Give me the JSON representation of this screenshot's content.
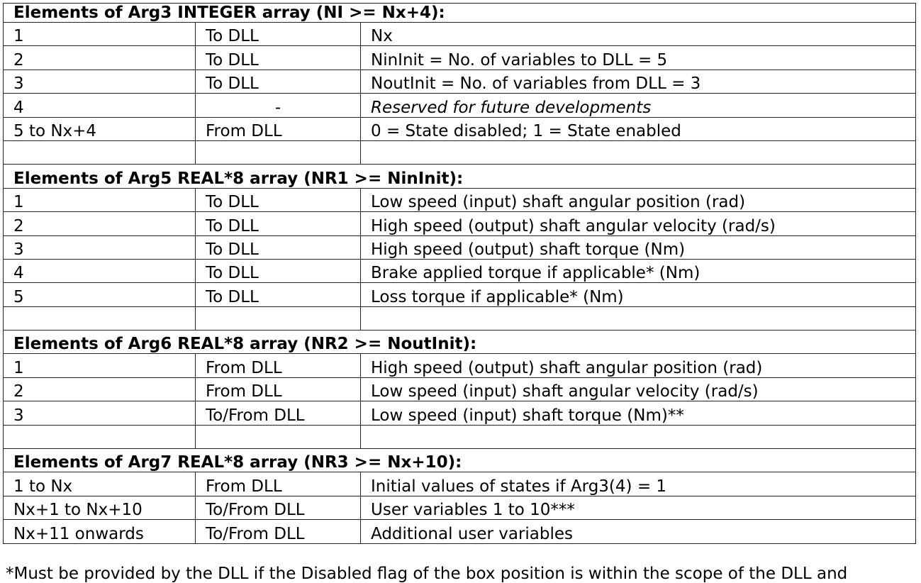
{
  "sections": [
    {
      "heading": "Elements of Arg3 INTEGER array (NI >= Nx+4):",
      "rows": [
        [
          "1",
          "To DLL",
          "Nx"
        ],
        [
          "2",
          "To DLL",
          "NinInit = No. of variables to DLL = 5"
        ],
        [
          "3",
          "To DLL",
          "NoutInit = No. of variables from DLL = 3"
        ],
        [
          "4",
          "-",
          "Reserved for future developments"
        ],
        [
          "5 to Nx+4",
          "From DLL",
          "0 = State disabled; 1 = State enabled"
        ]
      ]
    },
    {
      "heading": "Elements of Arg5 REAL*8 array (NR1 >= NinInit):",
      "rows": [
        [
          "1",
          "To DLL",
          "Low speed (input) shaft angular position (rad)"
        ],
        [
          "2",
          "To DLL",
          "High speed (output) shaft angular velocity (rad/s)"
        ],
        [
          "3",
          "To DLL",
          "High speed (output) shaft torque (Nm)"
        ],
        [
          "4",
          "To DLL",
          "Brake applied torque if applicable* (Nm)"
        ],
        [
          "5",
          "To DLL",
          "Loss torque if applicable* (Nm)"
        ]
      ]
    },
    {
      "heading": "Elements of Arg6 REAL*8 array (NR2 >= NoutInit):",
      "rows": [
        [
          "1",
          "From DLL",
          "High speed (output) shaft angular position (rad)"
        ],
        [
          "2",
          "From DLL",
          "Low speed (input) shaft angular velocity (rad/s)"
        ],
        [
          "3",
          "To/From DLL",
          "Low speed (input) shaft torque (Nm)**"
        ]
      ]
    },
    {
      "heading": "Elements of Arg7 REAL*8 array (NR3 >= Nx+10):",
      "rows": [
        [
          "1 to Nx",
          "From DLL",
          "Initial values of states if Arg3(4) = 1"
        ],
        [
          "Nx+1 to Nx+10",
          "To/From DLL",
          "User variables 1 to 10***"
        ],
        [
          "Nx+11 onwards",
          "To/From DLL",
          "Additional user variables"
        ]
      ]
    }
  ],
  "footnote": "*Must be provided by the DLL if the Disabled flag of the box position is within the scope of the DLL and"
}
